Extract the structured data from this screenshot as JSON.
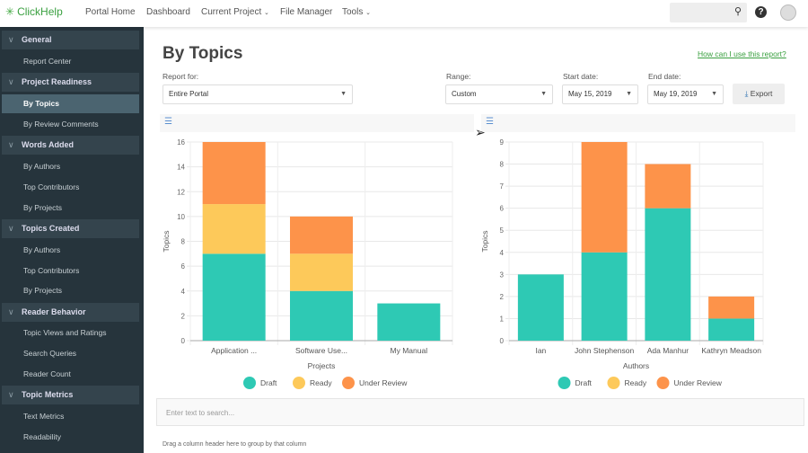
{
  "app": {
    "logo": "ClickHelp"
  },
  "nav": [
    {
      "label": "Portal Home"
    },
    {
      "label": "Dashboard"
    },
    {
      "label": "Current Project",
      "dropdown": true
    },
    {
      "label": "File Manager"
    },
    {
      "label": "Tools",
      "dropdown": true
    }
  ],
  "header_icons": [
    "search-icon",
    "help-icon",
    "avatar"
  ],
  "sidebar": {
    "sections": [
      {
        "label": "General",
        "items": [
          "Report Center"
        ]
      },
      {
        "label": "Project Readiness",
        "items": [
          "By Topics",
          "By Review Comments"
        ]
      },
      {
        "label": "Words Added",
        "items": [
          "By Authors",
          "Top Contributors",
          "By Projects"
        ]
      },
      {
        "label": "Topics Created",
        "items": [
          "By Authors",
          "Top Contributors",
          "By Projects"
        ]
      },
      {
        "label": "Reader Behavior",
        "items": [
          "Topic Views and Ratings",
          "Search Queries",
          "Reader Count"
        ]
      },
      {
        "label": "Topic Metrics",
        "items": [
          "Text Metrics",
          "Readability"
        ]
      }
    ],
    "active": "By Topics"
  },
  "page": {
    "title": "By Topics",
    "help_link": "How can I use this report?",
    "report_for_label": "Report for:",
    "report_for": "Entire Portal",
    "range_label": "Range:",
    "range": "Custom",
    "start_label": "Start date:",
    "start": "May 15, 2019",
    "end_label": "End date:",
    "end": "May 19, 2019",
    "export": "Export",
    "search_placeholder": "Enter text to search...",
    "group_hint": "Drag a column header here to group by that column"
  },
  "colors": {
    "Draft": "#2ec9b4",
    "Ready": "#fdc95a",
    "Under Review": "#fd934a",
    "accent": "#3aa040"
  },
  "chart_data": [
    {
      "type": "bar",
      "stacked": true,
      "xlabel": "Projects",
      "ylabel": "Topics",
      "ylim": [
        0,
        16
      ],
      "yticks": [
        0,
        2,
        4,
        6,
        8,
        10,
        12,
        14,
        16
      ],
      "grid": true,
      "legend": "bottom",
      "categories": [
        "Application ...",
        "Software Use...",
        "My Manual"
      ],
      "series": [
        {
          "name": "Draft",
          "values": [
            7,
            4,
            3
          ]
        },
        {
          "name": "Ready",
          "values": [
            4,
            3,
            0
          ]
        },
        {
          "name": "Under Review",
          "values": [
            5,
            3,
            0
          ]
        }
      ]
    },
    {
      "type": "bar",
      "stacked": true,
      "xlabel": "Authors",
      "ylabel": "Topics",
      "ylim": [
        0,
        9
      ],
      "yticks": [
        0,
        1,
        2,
        3,
        4,
        5,
        6,
        7,
        8,
        9
      ],
      "grid": true,
      "legend": "bottom",
      "categories": [
        "Ian",
        "John Stephenson",
        "Ada Manhur",
        "Kathryn Meadson"
      ],
      "series": [
        {
          "name": "Draft",
          "values": [
            3,
            4,
            6,
            1
          ]
        },
        {
          "name": "Ready",
          "values": [
            0,
            0,
            0,
            0
          ]
        },
        {
          "name": "Under Review",
          "values": [
            0,
            5,
            2,
            1
          ]
        }
      ]
    }
  ]
}
